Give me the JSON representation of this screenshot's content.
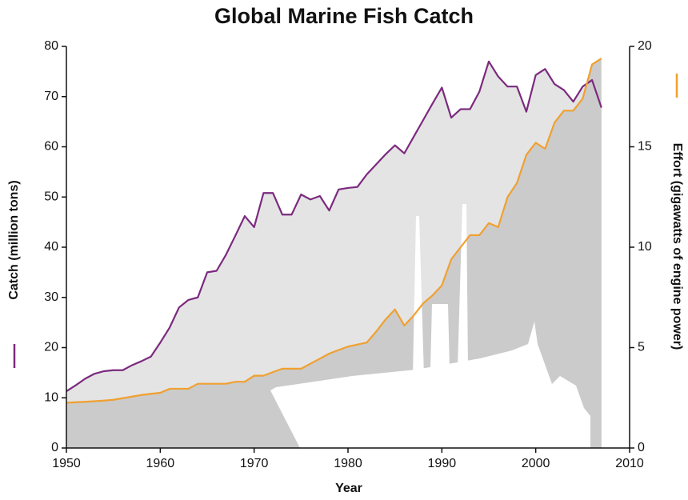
{
  "chart_data": {
    "type": "line",
    "area": true,
    "title": "Global Marine Fish Catch",
    "xlabel": "Year",
    "ylabel": "Catch (million tons)",
    "y2label": "Effort (gigawatts of engine power)",
    "x": [
      1950,
      1951,
      1952,
      1953,
      1954,
      1955,
      1956,
      1957,
      1958,
      1959,
      1960,
      1961,
      1962,
      1963,
      1964,
      1965,
      1966,
      1967,
      1968,
      1969,
      1970,
      1971,
      1972,
      1973,
      1974,
      1975,
      1976,
      1977,
      1978,
      1979,
      1980,
      1981,
      1982,
      1983,
      1984,
      1985,
      1986,
      1987,
      1988,
      1989,
      1990,
      1991,
      1992,
      1993,
      1994,
      1995,
      1996,
      1997,
      1998,
      1999,
      2000,
      2001,
      2002,
      2003,
      2004,
      2005,
      2006,
      2007
    ],
    "series": [
      {
        "color": "#7b2a7e",
        "area_color": "#e4e4e4",
        "values": [
          11.3,
          12.5,
          13.8,
          14.8,
          15.3,
          15.5,
          15.5,
          16.5,
          17.3,
          18.2,
          21,
          24,
          28,
          29.5,
          30,
          35,
          35.3,
          38.5,
          42.3,
          46.2,
          44,
          50.8,
          50.8,
          46.5,
          46.5,
          50.5,
          49.5,
          50.2,
          47.3,
          51.5,
          51.8,
          52,
          54.5,
          56.5,
          58.5,
          60.3,
          58.7,
          62,
          65.3,
          68.6,
          71.8,
          65.8,
          67.5,
          67.5,
          71,
          77,
          74,
          72,
          72,
          67,
          74.3,
          75.5,
          72.5,
          71.3,
          69,
          72,
          73.3,
          67.8
        ]
      },
      {
        "color": "#f0a030",
        "area_color": "#cbcbcb",
        "axis": "y2",
        "values": [
          2.25,
          2.28,
          2.3,
          2.33,
          2.36,
          2.4,
          2.48,
          2.56,
          2.64,
          2.7,
          2.75,
          2.95,
          2.95,
          2.95,
          3.2,
          3.2,
          3.2,
          3.2,
          3.3,
          3.3,
          3.6,
          3.6,
          3.78,
          3.95,
          3.95,
          3.95,
          4.2,
          4.45,
          4.7,
          4.88,
          5.05,
          5.15,
          5.25,
          5.8,
          6.4,
          6.9,
          6.1,
          6.6,
          7.2,
          7.6,
          8.1,
          9.4,
          10,
          10.6,
          10.6,
          11.2,
          11,
          12.5,
          13.2,
          14.6,
          15.2,
          14.9,
          16.2,
          16.8,
          16.8,
          17.4,
          19.1,
          19.4
        ]
      }
    ],
    "xlim": [
      1950,
      2010
    ],
    "xticks": [
      1950,
      1960,
      1970,
      1980,
      1990,
      2000,
      2010
    ],
    "ylim": [
      0,
      80
    ],
    "yticks": [
      0,
      10,
      20,
      30,
      40,
      50,
      60,
      70,
      80
    ],
    "y2lim": [
      0,
      20
    ],
    "y2ticks": [
      0,
      5,
      10,
      15,
      20
    ]
  }
}
